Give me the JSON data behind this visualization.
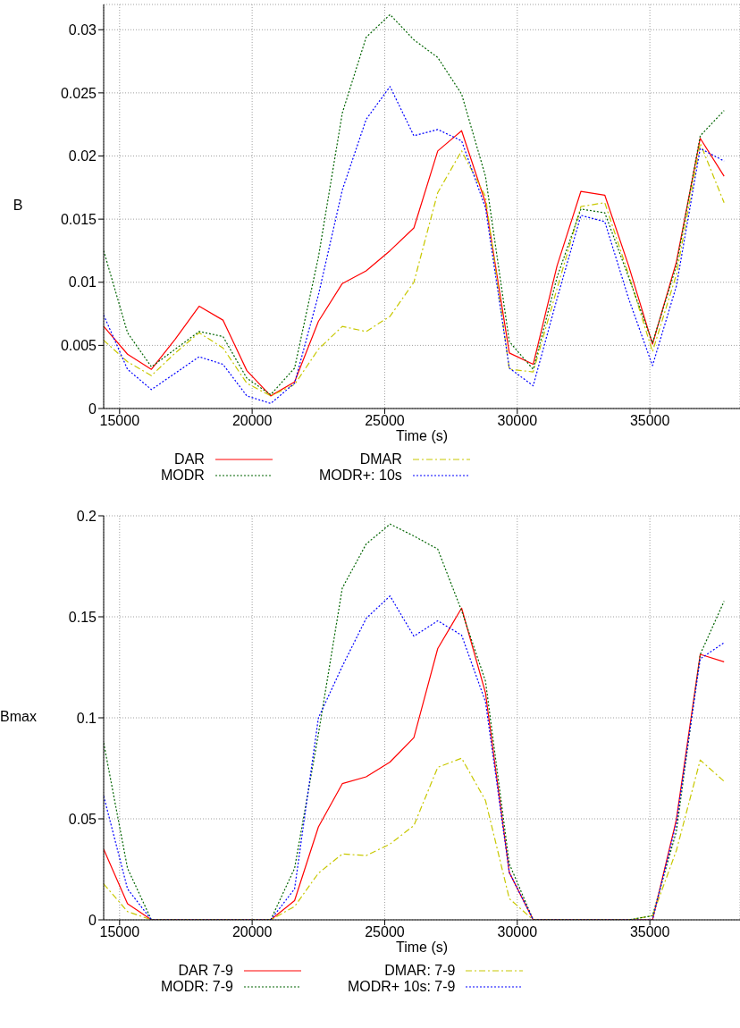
{
  "chart_data": [
    {
      "type": "line",
      "xlabel": "Time (s)",
      "ylabel": "B",
      "x": [
        14400,
        15300,
        16200,
        17100,
        18000,
        18900,
        19800,
        20700,
        21600,
        22500,
        23400,
        24300,
        25200,
        26100,
        27000,
        27900,
        28800,
        29700,
        30600,
        31500,
        32400,
        33300,
        34200,
        35100,
        36000,
        36900,
        37800
      ],
      "xlim": [
        14400,
        38400
      ],
      "xticks": [
        15000,
        20000,
        25000,
        30000,
        35000
      ],
      "ylim": [
        0,
        0.032
      ],
      "yticks": [
        0,
        0.005,
        0.01,
        0.015,
        0.02,
        0.025,
        0.03
      ],
      "grid": true,
      "legend": "bottom",
      "marker": "none",
      "series": [
        {
          "name": "DAR",
          "color": "#ff0000",
          "line_style": "solid",
          "values": [
            0.0065,
            0.0043,
            0.0031,
            0.0055,
            0.0081,
            0.007,
            0.003,
            0.001,
            0.0021,
            0.0069,
            0.0099,
            0.0109,
            0.0125,
            0.0143,
            0.0204,
            0.022,
            0.0163,
            0.0044,
            0.0035,
            0.0113,
            0.0172,
            0.0169,
            0.0113,
            0.0051,
            0.0116,
            0.0214,
            0.0184
          ]
        },
        {
          "name": "DMAR",
          "color": "#c8c800",
          "line_style": "dashed",
          "values": [
            0.0054,
            0.0037,
            0.0026,
            0.0044,
            0.006,
            0.0048,
            0.002,
            0.001,
            0.0019,
            0.0047,
            0.0065,
            0.0061,
            0.0073,
            0.01,
            0.0171,
            0.0204,
            0.0168,
            0.0031,
            0.0029,
            0.0095,
            0.016,
            0.0163,
            0.0106,
            0.0045,
            0.0106,
            0.021,
            0.0163
          ]
        },
        {
          "name": "MODR",
          "color": "#006400",
          "line_style": "dotted",
          "values": [
            0.0125,
            0.006,
            0.0033,
            0.0047,
            0.0061,
            0.0057,
            0.0024,
            0.0011,
            0.0032,
            0.012,
            0.0234,
            0.0294,
            0.0312,
            0.0292,
            0.0278,
            0.0249,
            0.0184,
            0.0053,
            0.0031,
            0.0104,
            0.0158,
            0.0155,
            0.0104,
            0.0052,
            0.0113,
            0.0216,
            0.0236
          ]
        },
        {
          "name": "MODR+: 10s",
          "color": "#0000ff",
          "line_style": "dotted",
          "values": [
            0.0074,
            0.0031,
            0.0015,
            0.0028,
            0.0041,
            0.0035,
            0.001,
            0.0004,
            0.002,
            0.009,
            0.0173,
            0.0229,
            0.0255,
            0.0216,
            0.0221,
            0.0212,
            0.0159,
            0.0032,
            0.0018,
            0.0087,
            0.0153,
            0.0148,
            0.0087,
            0.0034,
            0.0097,
            0.0206,
            0.0196
          ]
        }
      ]
    },
    {
      "type": "line",
      "xlabel": "Time (s)",
      "ylabel": "Bmax",
      "x": [
        14400,
        15300,
        16200,
        17100,
        18000,
        18900,
        19800,
        20700,
        21600,
        22500,
        23400,
        24300,
        25200,
        26100,
        27000,
        27900,
        28800,
        29700,
        30600,
        31500,
        32400,
        33300,
        34200,
        35100,
        36000,
        36900,
        37800
      ],
      "xlim": [
        14400,
        38400
      ],
      "xticks": [
        15000,
        20000,
        25000,
        30000,
        35000
      ],
      "ylim": [
        0,
        0.2
      ],
      "yticks": [
        0,
        0.05,
        0.1,
        0.15,
        0.2
      ],
      "grid": true,
      "legend": "bottom",
      "marker": "none",
      "series": [
        {
          "name": "DAR 7-9",
          "color": "#ff0000",
          "line_style": "solid",
          "values": [
            0.035,
            0.008,
            0,
            0,
            0,
            0,
            0,
            0,
            0.0095,
            0.046,
            0.0674,
            0.0708,
            0.0781,
            0.0902,
            0.1343,
            0.1543,
            0.1124,
            0.0234,
            0,
            0,
            0,
            0,
            0,
            0,
            0.0496,
            0.1314,
            0.1277
          ]
        },
        {
          "name": "DMAR: 7-9",
          "color": "#c8c800",
          "line_style": "dashed",
          "values": [
            0.0178,
            0.0041,
            0,
            0,
            0,
            0,
            0,
            0,
            0.0066,
            0.0231,
            0.0326,
            0.0318,
            0.0375,
            0.0467,
            0.0755,
            0.08,
            0.0591,
            0.0105,
            0,
            0,
            0,
            0,
            0,
            0.002,
            0.0343,
            0.0791,
            0.0686
          ]
        },
        {
          "name": "MODR: 7-9",
          "color": "#006400",
          "line_style": "dotted",
          "values": [
            0.0876,
            0.0255,
            0,
            0,
            0,
            0,
            0,
            0,
            0.0255,
            0.092,
            0.1642,
            0.186,
            0.1959,
            0.19,
            0.1835,
            0.153,
            0.1182,
            0.0277,
            0,
            0,
            0,
            0,
            0,
            0.002,
            0.0438,
            0.1314,
            0.1577
          ]
        },
        {
          "name": "MODR+ 10s: 7-9",
          "color": "#0000ff",
          "line_style": "dotted",
          "values": [
            0.0613,
            0.0153,
            0,
            0,
            0,
            0,
            0,
            0,
            0.0153,
            0.1,
            0.1255,
            0.1492,
            0.1603,
            0.1404,
            0.148,
            0.1409,
            0.108,
            0.0234,
            0,
            0,
            0,
            0,
            0,
            0,
            0.048,
            0.1292,
            0.1372
          ]
        }
      ]
    }
  ]
}
